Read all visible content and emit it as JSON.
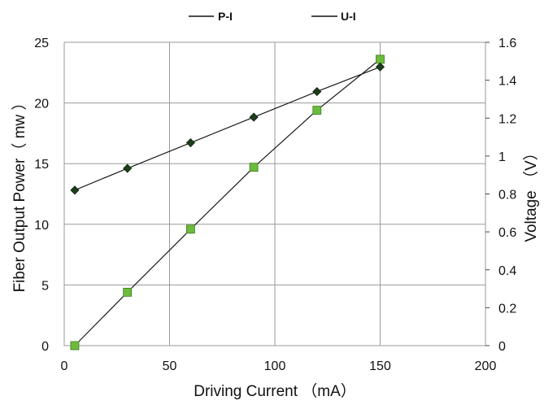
{
  "chart_data": {
    "type": "scatter",
    "title": "",
    "xlabel": "Driving Current （mA）",
    "ylabel": "Fiber Output Power（ mw ）",
    "y2label": "Voltage （V）",
    "xlim": [
      0,
      200
    ],
    "ylim": [
      0,
      25
    ],
    "y2lim": [
      0,
      1.6
    ],
    "xticks": [
      "0",
      "50",
      "100",
      "150",
      "200"
    ],
    "yticks": [
      "0",
      "5",
      "10",
      "15",
      "20",
      "25"
    ],
    "y2ticks": [
      "0",
      "0.2",
      "0.4",
      "0.6",
      "0.8",
      "1",
      "1.2",
      "1.4",
      "1.6"
    ],
    "grid": true,
    "legend_position": "top",
    "series": [
      {
        "name": "P-I",
        "axis": "left",
        "marker": "square",
        "color": "#6cbb3c",
        "x": [
          5,
          30,
          60,
          90,
          120,
          150
        ],
        "y": [
          0,
          4.4,
          9.6,
          14.7,
          19.4,
          23.6
        ]
      },
      {
        "name": "U-I",
        "axis": "right",
        "marker": "diamond",
        "color": "#1f3d1c",
        "x": [
          5,
          30,
          60,
          90,
          120,
          150
        ],
        "y": [
          0.82,
          0.935,
          1.07,
          1.205,
          1.34,
          1.47
        ]
      }
    ]
  }
}
